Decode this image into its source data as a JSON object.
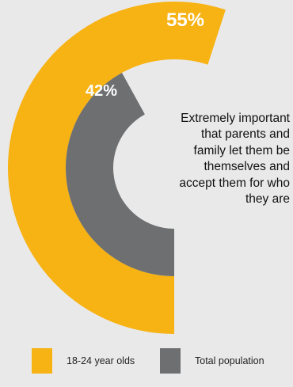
{
  "chart_data": {
    "type": "donut",
    "unit": "%",
    "caption": "Extremely important that parents and family let them be themselves and accept them for who they are",
    "series": [
      {
        "name": "18-24 year olds",
        "value": 55,
        "label": "55%",
        "color": "#f7b213",
        "ring": "outer"
      },
      {
        "name": "Total population",
        "value": 42,
        "label": "42%",
        "color": "#6e6f71",
        "ring": "inner"
      }
    ],
    "legend_position": "bottom"
  },
  "caption_lines": [
    "Extremely important",
    "that parents and",
    "family let them be",
    "themselves and",
    "accept them for who",
    "they are"
  ]
}
